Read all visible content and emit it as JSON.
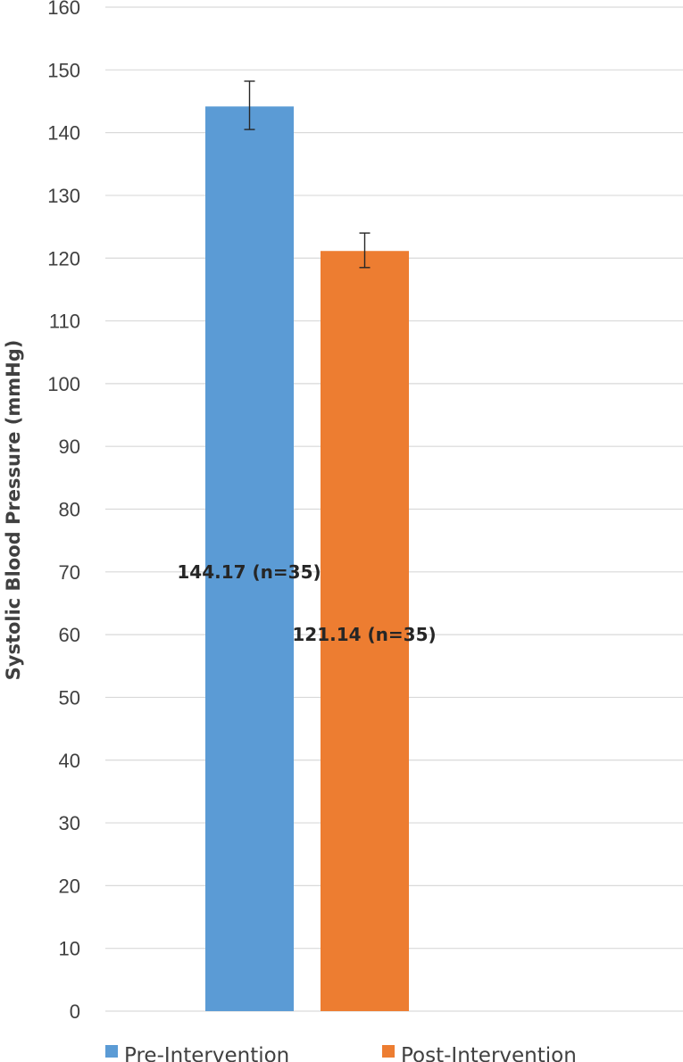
{
  "chart_data": {
    "type": "bar",
    "categories": [
      "Pre-Intervention",
      "Post-Intervention"
    ],
    "series": [
      {
        "name": "Pre-Intervention",
        "value": 144.17,
        "error_low": 140.5,
        "error_high": 148.2,
        "color": "#5b9bd5",
        "data_label": "144.17 (n=35)",
        "label_y": 70
      },
      {
        "name": "Post-Intervention",
        "value": 121.14,
        "error_low": 118.5,
        "error_high": 124.0,
        "color": "#ed7d31",
        "data_label": "121.14 (n=35)",
        "label_y": 60
      }
    ],
    "title": "",
    "xlabel": "",
    "ylabel": "Systolic Blood Pressure (mmHg)",
    "ylim": [
      0,
      160
    ],
    "yticks": [
      0,
      10,
      20,
      30,
      40,
      50,
      60,
      70,
      80,
      90,
      100,
      110,
      120,
      130,
      140,
      150,
      160
    ],
    "grid": true,
    "legend_position": "bottom"
  }
}
